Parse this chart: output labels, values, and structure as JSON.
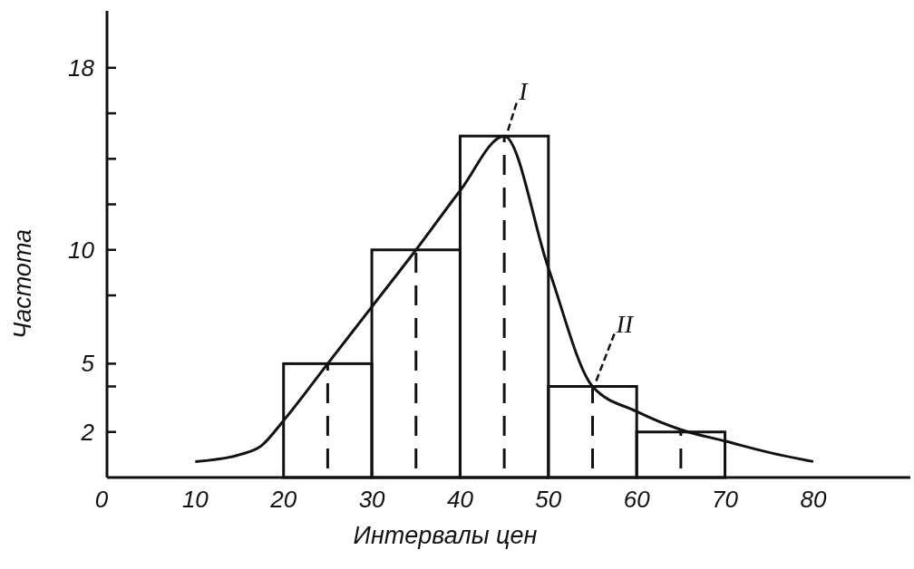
{
  "chart_data": {
    "type": "histogram",
    "xlabel": "Интервалы цен",
    "ylabel": "Частота",
    "bins": [
      20,
      30,
      40,
      50,
      60,
      70
    ],
    "values": [
      5,
      10,
      15,
      4,
      2
    ],
    "color": "#111111",
    "series": [
      {
        "type": "bar",
        "color": "#111111",
        "line_style": "dashed",
        "x": [
          25,
          35,
          45,
          55,
          65
        ],
        "values": [
          5,
          10,
          15,
          4,
          2
        ]
      },
      {
        "type": "line",
        "color": "#111111",
        "x": [
          10,
          15,
          17.5,
          20,
          25,
          30,
          35,
          40,
          45,
          50,
          55,
          60,
          65,
          70,
          75,
          80
        ],
        "values": [
          0.7,
          1.0,
          1.4,
          2.5,
          5,
          7.5,
          10,
          12.6,
          15,
          9.2,
          4,
          2.9,
          2.1,
          1.6,
          1.1,
          0.7
        ]
      }
    ],
    "annotations": [
      {
        "text": "I",
        "x": 45,
        "y": 15
      },
      {
        "text": "II",
        "x": 55,
        "y": 4
      }
    ],
    "xlim": [
      0,
      91
    ],
    "ylim": [
      0,
      20.5
    ],
    "xticks": [
      0,
      10,
      20,
      30,
      40,
      50,
      60,
      70,
      80
    ],
    "yticks": [
      {
        "value": 2,
        "label": "2"
      },
      {
        "value": 4,
        "label": null
      },
      5,
      {
        "value": 8,
        "label": null
      },
      {
        "value": 10,
        "label": "10"
      },
      {
        "value": 12,
        "label": null
      },
      {
        "value": 14,
        "label": null
      },
      {
        "value": 16,
        "label": null
      },
      {
        "value": 18,
        "label": "18"
      }
    ],
    "marker": "none",
    "line_style": "solid",
    "grid": false
  }
}
